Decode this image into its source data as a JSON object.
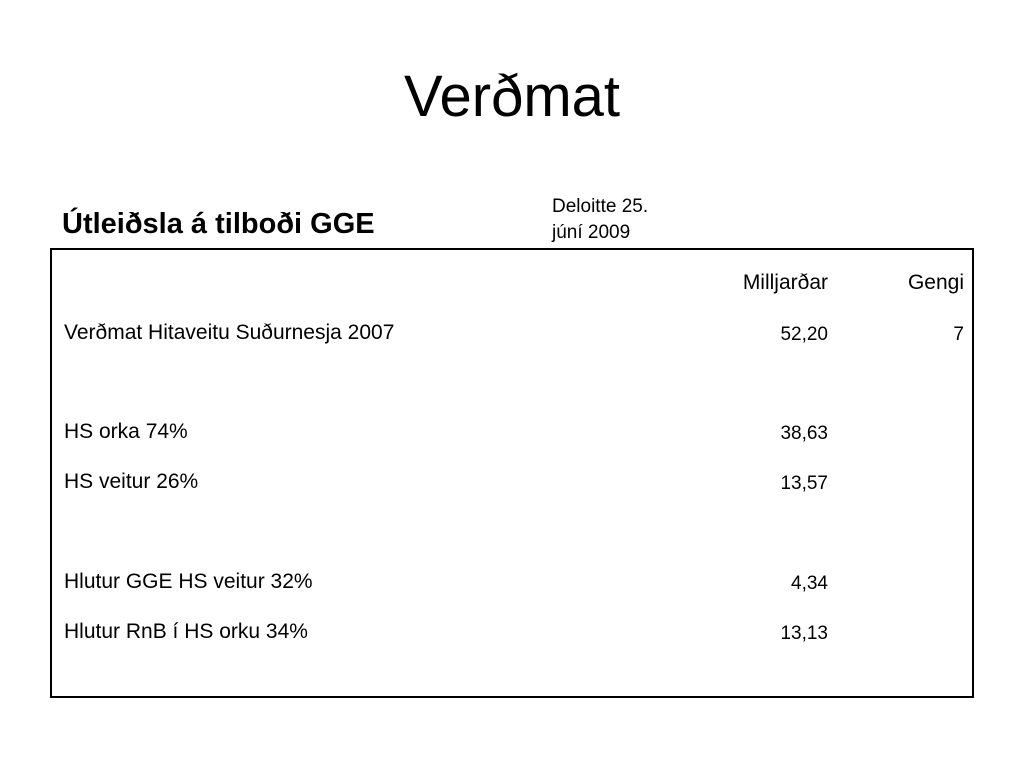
{
  "title": "Verðmat",
  "section_heading": "Útleiðsla á tilboði GGE",
  "source_note": {
    "line1": "Deloitte 25.",
    "line2": "júní 2009"
  },
  "table": {
    "columns": {
      "billions": "Milljarðar",
      "rate": "Gengi"
    },
    "rows": [
      {
        "label": "Verðmat Hitaveitu Suðurnesja 2007",
        "value": "52,20",
        "rate": "7"
      },
      {
        "label": "HS orka 74%",
        "value": "38,63",
        "rate": ""
      },
      {
        "label": "HS veitur 26%",
        "value": "13,57",
        "rate": ""
      },
      {
        "label": "Hlutur GGE HS veitur 32%",
        "value": "4,34",
        "rate": ""
      },
      {
        "label": "Hlutur RnB í HS orku 34%",
        "value": "13,13",
        "rate": ""
      }
    ]
  }
}
